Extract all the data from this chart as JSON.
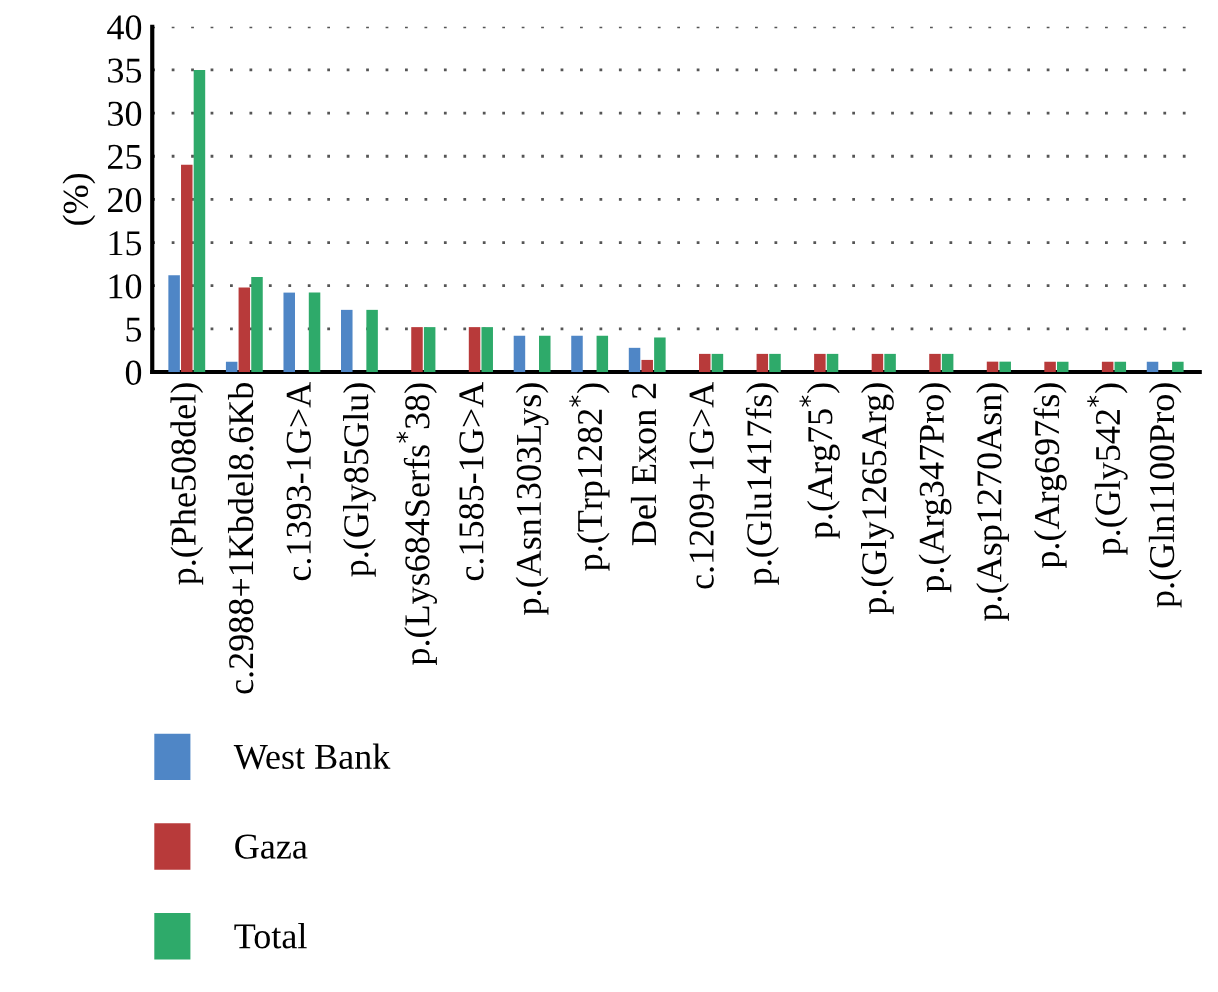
{
  "chart_data": {
    "type": "bar",
    "ylabel": "(%)",
    "categories": [
      "p.(Phe508del)",
      "c.2988+1Kbdel8.6Kb",
      "c.1393-1G>A",
      "p.(Gly85Glu)",
      "p.(Lys684Serfs$^{*}$38)",
      "c.1585-1G>A",
      "p.(Asn1303Lys)",
      "p.(Trp1282$^{*}$)",
      "Del Exon 2",
      "c.1209+1G>A",
      "p.(Glu1417fs)",
      "p.(Arg75$^{*}$)",
      "p.(Gly1265Arg)",
      "p.(Arg347Pro)",
      "p.(Asp1270Asn)",
      "p.(Arg697fs)",
      "p.(Gly542$^{*}$)",
      "p.(Gln1100Pro)"
    ],
    "series": [
      {
        "name": "West Bank",
        "color": "#4f86c6",
        "values": [
          11.2,
          1.2,
          9.2,
          7.2,
          null,
          null,
          4.2,
          4.2,
          2.8,
          null,
          null,
          null,
          null,
          null,
          null,
          null,
          null,
          1.2
        ]
      },
      {
        "name": "Gaza",
        "color": "#b83a3a",
        "values": [
          24,
          9.8,
          null,
          null,
          5.2,
          5.2,
          null,
          null,
          1.4,
          2.1,
          2.1,
          2.1,
          2.1,
          2.1,
          1.2,
          1.2,
          1.2,
          null
        ]
      },
      {
        "name": "Total",
        "color": "#2eaa6a",
        "values": [
          35,
          11,
          9.2,
          7.2,
          5.2,
          5.2,
          4.2,
          4.2,
          4,
          2.1,
          2.1,
          2.1,
          2.1,
          2.1,
          1.2,
          1.2,
          1.2,
          1.2
        ]
      }
    ],
    "ylim": [
      0,
      40
    ],
    "yticks": [
      0,
      5,
      10,
      15,
      20,
      25,
      30,
      35,
      40
    ],
    "grid": "y",
    "legend": "bottom left"
  }
}
